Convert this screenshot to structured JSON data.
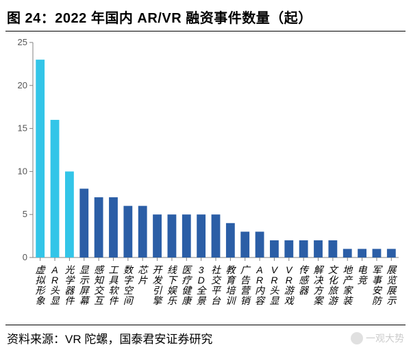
{
  "title": "图 24：2022 年国内 AR/VR 融资事件数量（起）",
  "source_label": "资料来源：VR 陀螺，国泰君安证券研究",
  "watermark_text": "一观大势",
  "chart": {
    "type": "bar",
    "background_color": "#ffffff",
    "axis_color": "#808080",
    "tick_font_size": 13,
    "tick_color": "#555555",
    "xlabel_font_size": 14,
    "xlabel_color": "#000000",
    "ylim": [
      0,
      25
    ],
    "ytick_step": 5,
    "bar_width": 0.6,
    "categories": [
      "虚拟形象",
      "AR头显",
      "光学器件",
      "显示屏幕",
      "感知交互",
      "工具软件",
      "数字空间",
      "芯片",
      "开发引擎",
      "线下娱乐",
      "医疗健康",
      "3D全景",
      "社交平台",
      "教育培训",
      "广告营销",
      "AR内容",
      "VR头显",
      "VR游戏",
      "传感器",
      "解决方案",
      "文化旅游",
      "地产家装",
      "电竞",
      "军事安防",
      "展览展示"
    ],
    "values": [
      23,
      16,
      10,
      8,
      7,
      7,
      6,
      6,
      5,
      5,
      5,
      5,
      5,
      4,
      3,
      3,
      2,
      2,
      2,
      2,
      2,
      1,
      1,
      1,
      1
    ],
    "bar_colors": [
      "#33c5e8",
      "#33c5e8",
      "#33c5e8",
      "#2b5ea6",
      "#2b5ea6",
      "#2b5ea6",
      "#2b5ea6",
      "#2b5ea6",
      "#2b5ea6",
      "#2b5ea6",
      "#2b5ea6",
      "#2b5ea6",
      "#2b5ea6",
      "#2b5ea6",
      "#2b5ea6",
      "#2b5ea6",
      "#2b5ea6",
      "#2b5ea6",
      "#2b5ea6",
      "#2b5ea6",
      "#2b5ea6",
      "#2b5ea6",
      "#2b5ea6",
      "#2b5ea6",
      "#2b5ea6"
    ]
  }
}
